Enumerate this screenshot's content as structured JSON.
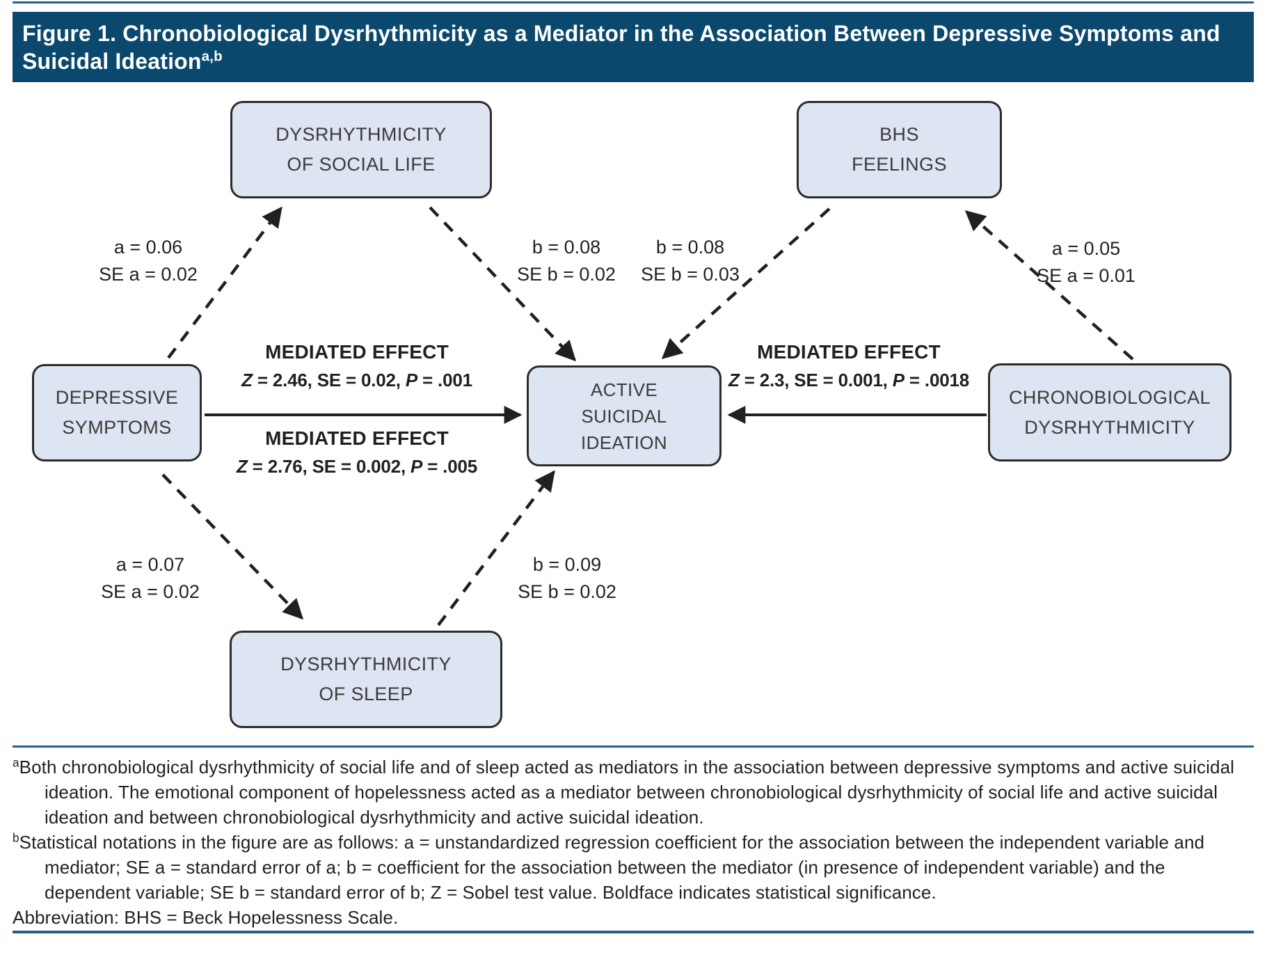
{
  "figure": {
    "title": "Figure 1. Chronobiological Dysrhythmicity as a Mediator in the Association Between Depressive Symptoms and Suicidal Ideation",
    "title_superscript": "a,b"
  },
  "boxes": {
    "social": {
      "line1": "DYSRHYTHMICITY",
      "line2": "OF SOCIAL LIFE"
    },
    "bhs": {
      "line1": "BHS",
      "line2": "FEELINGS"
    },
    "depressive": {
      "line1": "DEPRESSIVE",
      "line2": "SYMPTOMS"
    },
    "active": {
      "line1": "ACTIVE",
      "line2": "SUICIDAL",
      "line3": "IDEATION"
    },
    "chrono": {
      "line1": "CHRONOBIOLOGICAL",
      "line2": "DYSRHYTHMICITY"
    },
    "sleep": {
      "line1": "DYSRHYTHMICITY",
      "line2": "OF SLEEP"
    }
  },
  "path_labels": {
    "a_social": {
      "line1": "a = 0.06",
      "line2": "SE a = 0.02"
    },
    "b_social": {
      "line1": "b = 0.08",
      "line2": "SE b = 0.02"
    },
    "b_bhs": {
      "line1": "b = 0.08",
      "line2": "SE b = 0.03"
    },
    "a_bhs": {
      "line1": "a = 0.05",
      "line2": "SE a = 0.01"
    },
    "a_sleep": {
      "line1": "a = 0.07",
      "line2": "SE a = 0.02"
    },
    "b_sleep": {
      "line1": "b = 0.09",
      "line2": "SE b = 0.02"
    }
  },
  "mediated_effects": {
    "social": {
      "label": "MEDIATED EFFECT",
      "stats": [
        {
          "t": "Z",
          "i": 1
        },
        {
          "t": " = 2.46, SE = 0.02, ",
          "i": 0
        },
        {
          "t": "P",
          "i": 1
        },
        {
          "t": " = .001",
          "i": 0
        }
      ]
    },
    "sleep": {
      "label": "MEDIATED EFFECT",
      "stats": [
        {
          "t": "Z",
          "i": 1
        },
        {
          "t": " = 2.76, SE = 0.002, ",
          "i": 0
        },
        {
          "t": "P",
          "i": 1
        },
        {
          "t": " = .005",
          "i": 0
        }
      ]
    },
    "chrono": {
      "label": "MEDIATED EFFECT",
      "stats": [
        {
          "t": "Z",
          "i": 1
        },
        {
          "t": " = 2.3, SE = 0.001, ",
          "i": 0
        },
        {
          "t": "P",
          "i": 1
        },
        {
          "t": " = .0018",
          "i": 0
        }
      ]
    }
  },
  "footnotes": [
    {
      "sup": "a",
      "text": "Both chronobiological dysrhythmicity of social life and of sleep acted as mediators in the association between depressive symptoms and active suicidal ideation. The emotional component of hopelessness acted as a mediator between chronobiological dysrhythmicity of social life and active suicidal ideation and between chronobiological dysrhythmicity and active suicidal ideation."
    },
    {
      "sup": "b",
      "text": "Statistical notations in the figure are as follows: a = unstandardized regression coefficient for the association between the independent variable and mediator; SE a = standard error of a; b = coefficient for the association between the mediator (in presence of independent variable) and the dependent variable; SE b = standard error of b; Z = Sobel test value. Boldface indicates statistical significance."
    },
    {
      "sup": "",
      "text": "Abbreviation: BHS = Beck Hopelessness Scale."
    }
  ],
  "colors": {
    "header_bg": "#0a486e",
    "header_text": "#ffffff",
    "box_fill": "#dde4f2",
    "box_border": "#2d2a2b",
    "box_text": "#3c3a3b",
    "ink": "#231f20",
    "rule": "#255e90",
    "page_bg": "#ffffff"
  }
}
